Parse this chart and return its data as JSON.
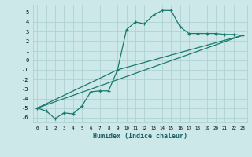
{
  "title": "",
  "xlabel": "Humidex (Indice chaleur)",
  "bg_color": "#cde8e8",
  "line_color": "#1a7a6e",
  "grid_color": "#aacece",
  "xlim": [
    -0.5,
    23.5
  ],
  "ylim": [
    -6.5,
    5.8
  ],
  "xticks": [
    0,
    1,
    2,
    3,
    4,
    5,
    6,
    7,
    8,
    9,
    10,
    11,
    12,
    13,
    14,
    15,
    16,
    17,
    18,
    19,
    20,
    21,
    22,
    23
  ],
  "yticks": [
    -6,
    -5,
    -4,
    -3,
    -2,
    -1,
    0,
    1,
    2,
    3,
    4,
    5
  ],
  "main_x": [
    0,
    1,
    2,
    3,
    4,
    5,
    6,
    7,
    8,
    9,
    10,
    11,
    12,
    13,
    14,
    15,
    16,
    17,
    18,
    19,
    20,
    21,
    22,
    23
  ],
  "main_y": [
    -5.0,
    -5.3,
    -6.1,
    -5.5,
    -5.6,
    -4.8,
    -3.3,
    -3.2,
    -3.2,
    -1.0,
    3.2,
    4.0,
    3.8,
    4.7,
    5.2,
    5.2,
    3.5,
    2.8,
    2.8,
    2.8,
    2.8,
    2.7,
    2.7,
    2.6
  ],
  "line2_x": [
    0,
    23
  ],
  "line2_y": [
    -5.0,
    2.6
  ],
  "line3_x": [
    0,
    9,
    23
  ],
  "line3_y": [
    -5.0,
    -1.0,
    2.6
  ]
}
